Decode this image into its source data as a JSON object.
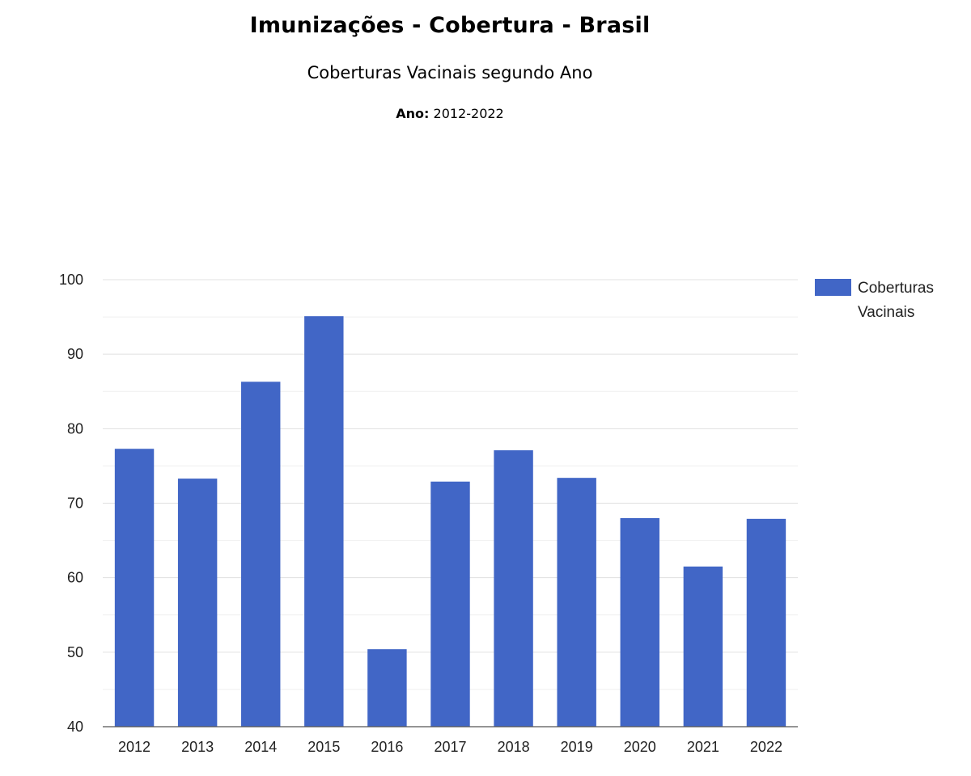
{
  "header": {
    "title": "Imunizações - Cobertura - Brasil",
    "subtitle": "Coberturas Vacinais segundo Ano",
    "period_label": "Ano:",
    "period_value": "2012-2022"
  },
  "colors": {
    "bar": "#4166c6",
    "gridline": "#e0e0e0",
    "minor_gridline": "#efefef",
    "axis_text": "#222222"
  },
  "chart_data": {
    "type": "bar",
    "categories": [
      "2012",
      "2013",
      "2014",
      "2015",
      "2016",
      "2017",
      "2018",
      "2019",
      "2020",
      "2021",
      "2022"
    ],
    "series": [
      {
        "name": "Coberturas Vacinais",
        "values": [
          77.3,
          73.3,
          86.3,
          95.1,
          50.4,
          72.9,
          77.1,
          73.4,
          68.0,
          61.5,
          67.9
        ]
      }
    ],
    "title": "",
    "xlabel": "",
    "ylabel": "",
    "ylim": [
      40,
      100
    ],
    "yticks": [
      "40",
      "50",
      "60",
      "70",
      "80",
      "90",
      "100"
    ],
    "grid": true,
    "legend": "right"
  }
}
